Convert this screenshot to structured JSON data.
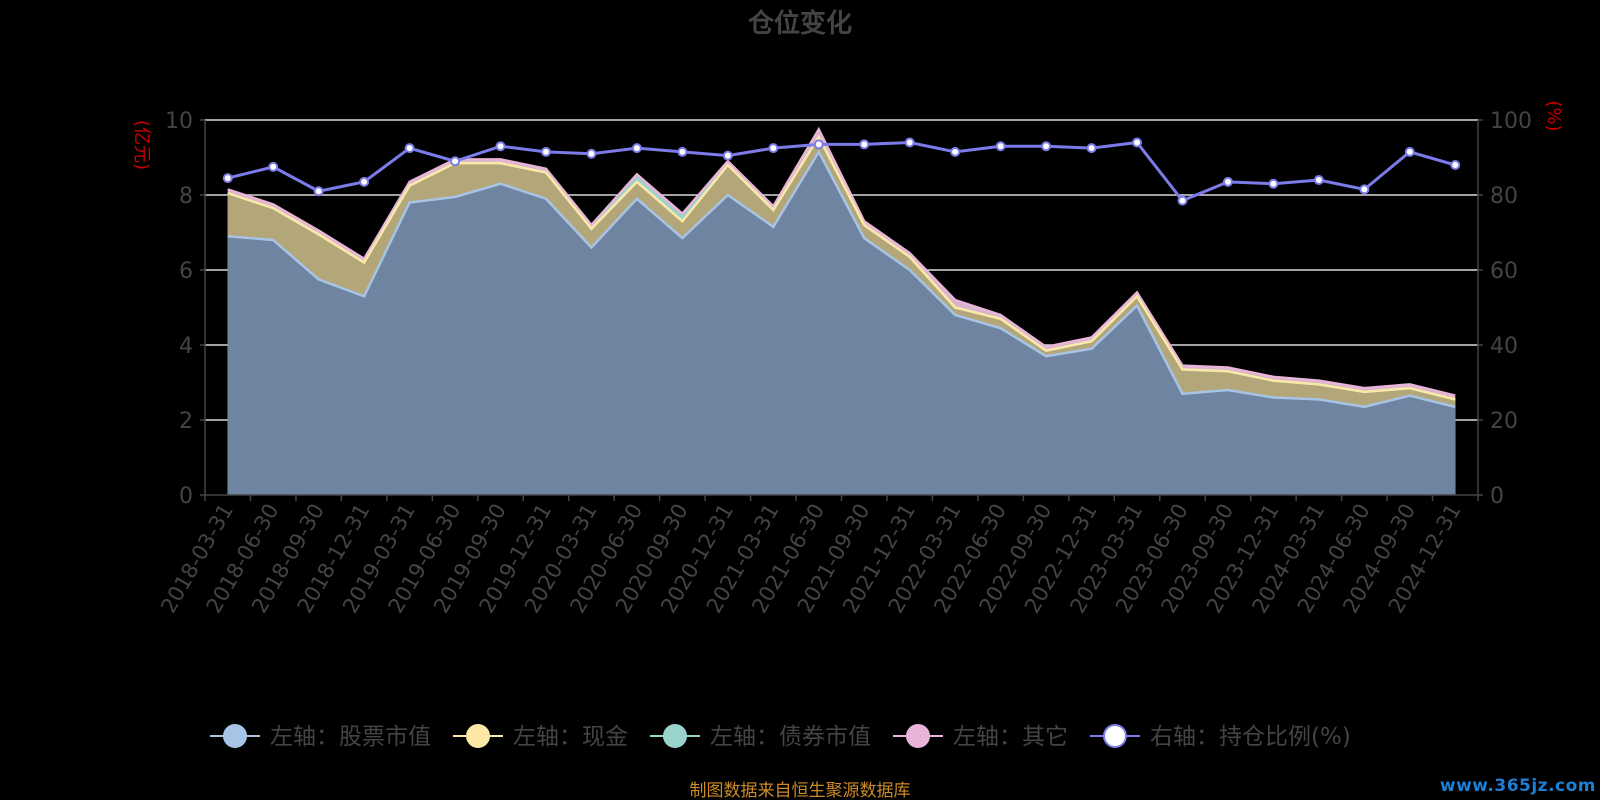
{
  "source_note": "制图数据来自恒生聚源数据库",
  "watermark": "www.365jz.com",
  "chart_data": {
    "type": "area",
    "title": "仓位变化",
    "left_axis_label": "(亿元)",
    "right_axis_label": "(%)",
    "ylim_left": [
      0,
      10
    ],
    "ylim_right": [
      0,
      100
    ],
    "yticks_left": [
      0,
      2,
      4,
      6,
      8,
      10
    ],
    "yticks_right": [
      0,
      20,
      40,
      60,
      80,
      100
    ],
    "grid": true,
    "legend_position": "bottom",
    "colors": {
      "background": "#000000",
      "title": "#444444",
      "axis_text": "#444444",
      "axis_name": "#cc0000",
      "grid": "#ffffff",
      "stock_fill": "#6f84a1",
      "stock_line": "#a7c3e6",
      "cash_fill": "#b3a678",
      "cash_line": "#fbe8a6",
      "bond_fill": "#98d4cc",
      "bond_line": "#98d4cc",
      "other_fill": "#d8b4cc",
      "other_line": "#e8b4d8",
      "ratio_line": "#7b7bea",
      "ratio_point": "#ffffff",
      "source_note": "#cd8a26",
      "watermark": "#1c7fd6"
    },
    "categories": [
      "2018-03-31",
      "2018-06-30",
      "2018-09-30",
      "2018-12-31",
      "2019-03-31",
      "2019-06-30",
      "2019-09-30",
      "2019-12-31",
      "2020-03-31",
      "2020-06-30",
      "2020-09-30",
      "2020-12-31",
      "2021-03-31",
      "2021-06-30",
      "2021-09-30",
      "2021-12-31",
      "2022-03-31",
      "2022-06-30",
      "2022-09-30",
      "2022-12-31",
      "2023-03-31",
      "2023-06-30",
      "2023-09-30",
      "2023-12-31",
      "2024-03-31",
      "2024-06-30",
      "2024-09-30",
      "2024-12-31"
    ],
    "series": [
      {
        "name": "左轴：股票市值",
        "axis": "left",
        "stacked": true,
        "values": [
          6.9,
          6.8,
          5.75,
          5.3,
          7.8,
          7.95,
          8.3,
          7.9,
          6.6,
          7.9,
          6.85,
          8.0,
          7.15,
          9.15,
          6.85,
          6.0,
          4.8,
          4.45,
          3.7,
          3.9,
          5.05,
          2.7,
          2.8,
          2.6,
          2.55,
          2.35,
          2.65,
          2.35
        ]
      },
      {
        "name": "左轴：现金",
        "axis": "left",
        "stacked": true,
        "values": [
          1.15,
          0.85,
          1.2,
          0.9,
          0.45,
          0.9,
          0.55,
          0.7,
          0.5,
          0.45,
          0.45,
          0.8,
          0.45,
          0.4,
          0.35,
          0.35,
          0.2,
          0.25,
          0.15,
          0.2,
          0.25,
          0.65,
          0.5,
          0.45,
          0.4,
          0.4,
          0.2,
          0.2
        ]
      },
      {
        "name": "左轴：债券市值",
        "axis": "left",
        "stacked": true,
        "values": [
          0.0,
          0.0,
          0.0,
          0.0,
          0.0,
          0.0,
          0.0,
          0.0,
          0.0,
          0.1,
          0.1,
          0.0,
          0.0,
          0.0,
          0.0,
          0.0,
          0.0,
          0.0,
          0.0,
          0.0,
          0.0,
          0.0,
          0.0,
          0.0,
          0.0,
          0.0,
          0.0,
          0.0
        ]
      },
      {
        "name": "左轴：其它",
        "axis": "left",
        "stacked": true,
        "values": [
          0.1,
          0.1,
          0.1,
          0.1,
          0.1,
          0.1,
          0.1,
          0.1,
          0.1,
          0.1,
          0.1,
          0.1,
          0.1,
          0.2,
          0.1,
          0.1,
          0.2,
          0.1,
          0.1,
          0.1,
          0.1,
          0.1,
          0.1,
          0.1,
          0.1,
          0.1,
          0.1,
          0.1
        ]
      },
      {
        "name": "右轴：持仓比例(%)",
        "axis": "right",
        "stacked": false,
        "values": [
          84.5,
          87.5,
          81.0,
          83.5,
          92.5,
          89.0,
          93.0,
          91.5,
          91.0,
          92.5,
          91.5,
          90.5,
          92.5,
          93.5,
          93.5,
          94.0,
          91.5,
          93.0,
          93.0,
          92.5,
          94.0,
          78.5,
          83.5,
          83.0,
          84.0,
          81.5,
          91.5,
          88.0
        ]
      }
    ]
  }
}
